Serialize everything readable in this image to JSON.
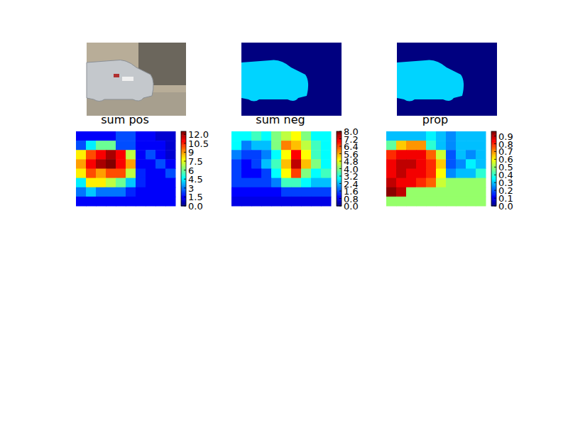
{
  "chart_data": [
    {
      "type": "heatmap",
      "title": "sum pos",
      "colorbar_range": [
        0,
        12.5
      ],
      "colorbar_ticks": [
        {
          "value": 0,
          "label": "0.0"
        },
        1.5,
        3,
        4.5,
        6,
        7.5,
        9,
        10.5,
        {
          "value": 12,
          "label": "12.0"
        }
      ],
      "cells": [
        [
          1.5,
          1.5,
          1.5,
          1.5,
          2.5,
          2.5,
          1.5,
          1.5,
          1,
          1
        ],
        [
          2.5,
          4.5,
          6,
          6,
          2.5,
          2.5,
          1.5,
          1.5,
          1.5,
          1
        ],
        [
          8,
          10,
          11,
          12,
          11,
          7,
          1.5,
          2.5,
          1.5,
          1
        ],
        [
          9,
          11,
          12,
          12.5,
          11,
          9,
          1.5,
          1.5,
          2.5,
          1.5
        ],
        [
          8,
          10,
          9,
          10,
          10,
          7,
          2,
          1.5,
          1.5,
          2.5
        ],
        [
          4.5,
          8,
          8,
          7,
          6,
          4,
          2,
          1.5,
          1.5,
          1.5
        ],
        [
          3,
          4,
          3,
          3,
          3,
          2,
          1.5,
          1.5,
          1.5,
          1.5
        ],
        [
          1.5,
          1.5,
          1.5,
          1.5,
          1.5,
          1.5,
          1.5,
          1.5,
          1.5,
          1.5
        ]
      ]
    },
    {
      "type": "heatmap",
      "title": "sum neg",
      "colorbar_range": [
        0,
        8
      ],
      "colorbar_ticks": [
        {
          "value": 0,
          "label": "0.0"
        },
        0.8,
        1.6,
        2.4,
        3.2,
        {
          "value": 4,
          "label": "4.0"
        },
        4.8,
        5.6,
        6.4,
        7.2,
        {
          "value": 8,
          "label": "8.0"
        }
      ],
      "cells": [
        [
          3,
          3,
          3.5,
          3,
          4,
          4.5,
          5,
          4,
          3,
          3
        ],
        [
          3,
          2,
          2.5,
          2.5,
          4,
          6,
          5.5,
          4.5,
          3.5,
          3
        ],
        [
          2,
          1.5,
          1.5,
          2,
          3,
          5,
          7,
          5,
          3.5,
          3
        ],
        [
          1.5,
          1,
          1.5,
          2.5,
          3.5,
          5.5,
          7.5,
          5.5,
          4,
          3
        ],
        [
          1.5,
          1,
          1,
          1.5,
          3,
          5,
          6.5,
          4,
          3,
          3.5
        ],
        [
          1.5,
          1.5,
          1.5,
          1.5,
          2,
          3.5,
          3.5,
          3,
          2.5,
          2.5
        ],
        [
          1,
          1,
          1,
          1,
          1,
          1.5,
          1.5,
          1.5,
          1.5,
          1.5
        ],
        [
          0.8,
          0.8,
          0.8,
          0.8,
          0.8,
          0.8,
          0.8,
          0.8,
          0.8,
          0.8
        ]
      ]
    },
    {
      "type": "heatmap",
      "title": "prop",
      "colorbar_range": [
        0,
        0.96
      ],
      "colorbar_ticks": [
        {
          "value": 0,
          "label": "0.0"
        },
        0.1,
        0.2,
        0.3,
        0.4,
        0.5,
        0.6,
        0.7,
        0.8,
        0.9
      ],
      "cells": [
        [
          0.3,
          0.3,
          0.3,
          0.3,
          0.35,
          0.3,
          0.25,
          0.3,
          0.3,
          0.3
        ],
        [
          0.45,
          0.65,
          0.7,
          0.7,
          0.4,
          0.3,
          0.25,
          0.3,
          0.3,
          0.3
        ],
        [
          0.8,
          0.85,
          0.85,
          0.85,
          0.75,
          0.55,
          0.2,
          0.3,
          0.25,
          0.3
        ],
        [
          0.85,
          0.9,
          0.9,
          0.85,
          0.8,
          0.65,
          0.2,
          0.25,
          0.35,
          0.3
        ],
        [
          0.85,
          0.9,
          0.85,
          0.85,
          0.8,
          0.6,
          0.25,
          0.3,
          0.3,
          0.4
        ],
        [
          0.9,
          0.85,
          0.85,
          0.8,
          0.75,
          0.55,
          0.5,
          0.5,
          0.5,
          0.5
        ],
        [
          0.95,
          0.9,
          0.5,
          0.5,
          0.5,
          0.5,
          0.5,
          0.5,
          0.5,
          0.5
        ],
        [
          0.5,
          0.5,
          0.5,
          0.5,
          0.5,
          0.5,
          0.5,
          0.5,
          0.5,
          0.5
        ]
      ]
    }
  ]
}
